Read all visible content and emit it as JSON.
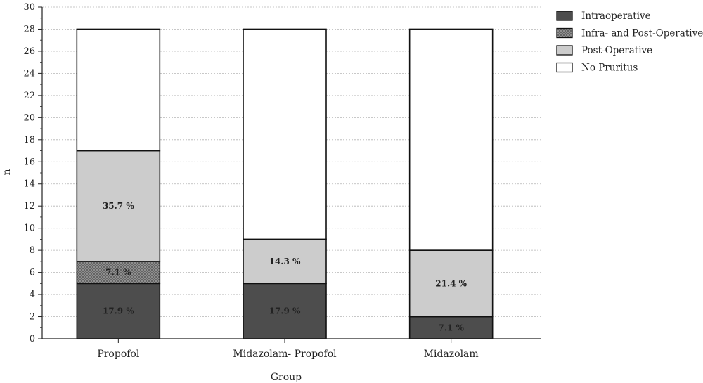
{
  "chart_data": {
    "type": "bar",
    "stacked": true,
    "title": "",
    "xlabel": "Group",
    "ylabel": "n",
    "ylim": [
      0,
      30
    ],
    "yticks": [
      0,
      2,
      4,
      6,
      8,
      10,
      12,
      14,
      16,
      18,
      20,
      22,
      24,
      26,
      28,
      30
    ],
    "grid": true,
    "legend_position": "top-right",
    "categories": [
      "Propofol",
      "Midazolam- Propofol",
      "Midazolam"
    ],
    "series": [
      {
        "name": "Intraoperative",
        "values": [
          5,
          5,
          2
        ],
        "labels": [
          "17.9 %",
          "17.9 %",
          "7.1 %"
        ],
        "color": "#4d4d4d"
      },
      {
        "name": "Infra- and Post-Operative",
        "values": [
          2,
          0,
          0
        ],
        "labels": [
          "7.1 %",
          "",
          ""
        ],
        "color": "#8c8c8c",
        "pattern": "crosshatch"
      },
      {
        "name": "Post-Operative",
        "values": [
          10,
          4,
          6
        ],
        "labels": [
          "35.7 %",
          "14.3 %",
          "21.4 %"
        ],
        "color": "#cccccc"
      },
      {
        "name": "No Pruritus",
        "values": [
          11,
          19,
          20
        ],
        "labels": [
          "",
          "",
          ""
        ],
        "color": "#ffffff"
      }
    ]
  }
}
